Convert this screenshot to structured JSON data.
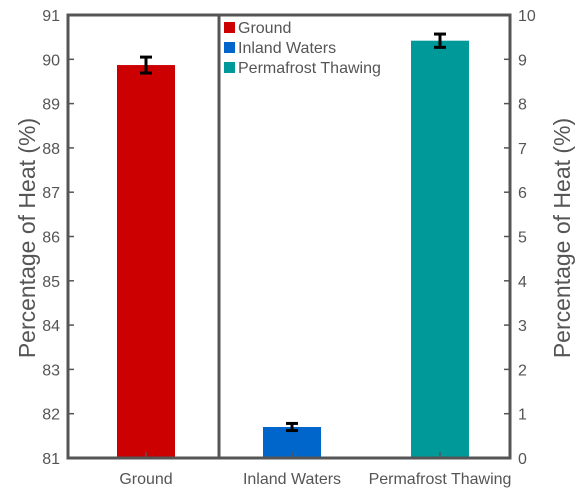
{
  "chart_data": {
    "type": "bar",
    "categories": [
      "Ground",
      "Inland Waters",
      "Permafrost Thawing"
    ],
    "series": [
      {
        "name": "Ground",
        "axis": "left",
        "category": "Ground",
        "value": 89.87,
        "error": 0.18,
        "color": "#cc0000"
      },
      {
        "name": "Inland Waters",
        "axis": "right",
        "category": "Inland Waters",
        "value": 0.7,
        "error": 0.08,
        "color": "#0066cc"
      },
      {
        "name": "Permafrost Thawing",
        "axis": "right",
        "category": "Permafrost Thawing",
        "value": 9.42,
        "error": 0.15,
        "color": "#009999"
      }
    ],
    "ylabel_left": "Percentage of Heat (%)",
    "ylabel_right": "Percentage of Heat (%)",
    "ylim_left": [
      81,
      91
    ],
    "ylim_right": [
      0,
      10
    ],
    "yticks_left": [
      "81",
      "82",
      "83",
      "84",
      "85",
      "86",
      "87",
      "88",
      "89",
      "90",
      "91"
    ],
    "yticks_right": [
      "0",
      "1",
      "2",
      "3",
      "4",
      "5",
      "6",
      "7",
      "8",
      "9",
      "10"
    ],
    "legend": [
      {
        "label": "Ground",
        "color": "#cc0000"
      },
      {
        "label": "Inland Waters",
        "color": "#0066cc"
      },
      {
        "label": "Permafrost Thawing",
        "color": "#009999"
      }
    ],
    "legend_position": "top-center",
    "grid": false,
    "axis_color": "#555555",
    "divider": "vertical line between Ground and Inland Waters"
  }
}
